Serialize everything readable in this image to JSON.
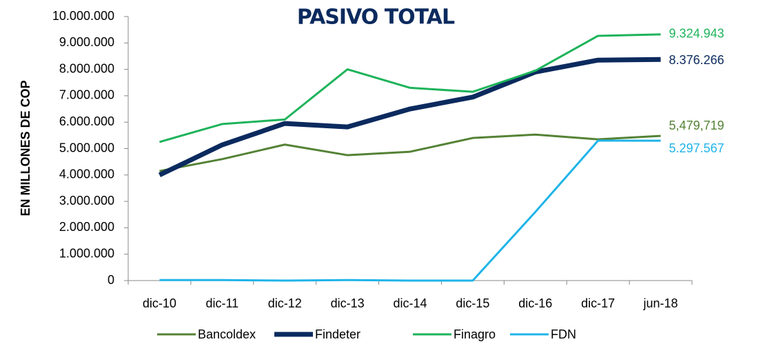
{
  "chart_data": {
    "type": "line",
    "title": "PASIVO TOTAL",
    "y_label": "EN MILLONES DE COP",
    "categories": [
      "dic-10",
      "dic-11",
      "dic-12",
      "dic-13",
      "dic-14",
      "dic-15",
      "dic-16",
      "dic-17",
      "jun-18"
    ],
    "ylim": [
      0,
      10000000
    ],
    "yticks": [
      0,
      {
        "value": 1000000,
        "label": "1.000.000"
      },
      {
        "value": 2000000,
        "label": "2.000.000"
      },
      {
        "value": 3000000,
        "label": "3.000.000"
      },
      {
        "value": 4000000,
        "label": "4.000.000"
      },
      {
        "value": 5000000,
        "label": "5.000.000"
      },
      {
        "value": 6000000,
        "label": "6.000.000"
      },
      {
        "value": 7000000,
        "label": "7.000.000"
      },
      {
        "value": 8000000,
        "label": "8.000.000"
      },
      {
        "value": 9000000,
        "label": "9.000.000"
      },
      {
        "value": 10000000,
        "label": "10.000.000"
      }
    ],
    "grid": false,
    "legend": "bottom",
    "series": [
      {
        "name": "Bancoldex",
        "color": "#548235",
        "values": [
          4150000,
          4600000,
          5150000,
          4750000,
          4880000,
          5400000,
          5530000,
          5350000,
          5479719
        ],
        "value_labels": [
          null,
          null,
          null,
          null,
          null,
          null,
          null,
          null,
          "5,479,719"
        ]
      },
      {
        "name": "Findeter",
        "color": "#0b2a5e",
        "values": [
          4000000,
          5140000,
          5950000,
          5820000,
          6500000,
          6950000,
          7900000,
          8350000,
          8376266
        ],
        "value_labels": [
          null,
          null,
          null,
          null,
          null,
          null,
          null,
          null,
          "8.376.266"
        ]
      },
      {
        "name": "Finagro",
        "color": "#1db35a",
        "values": [
          5250000,
          5930000,
          6100000,
          8000000,
          7300000,
          7150000,
          7950000,
          9270000,
          9324943
        ],
        "value_labels": [
          null,
          null,
          null,
          null,
          null,
          null,
          null,
          null,
          "9.324.943"
        ]
      },
      {
        "name": "FDN",
        "color": "#1fb4e8",
        "values": [
          20000,
          20000,
          0,
          20000,
          0,
          0,
          2600000,
          5300000,
          5297567
        ],
        "value_labels": [
          null,
          null,
          null,
          null,
          null,
          null,
          null,
          null,
          "5.297.567"
        ]
      }
    ]
  }
}
